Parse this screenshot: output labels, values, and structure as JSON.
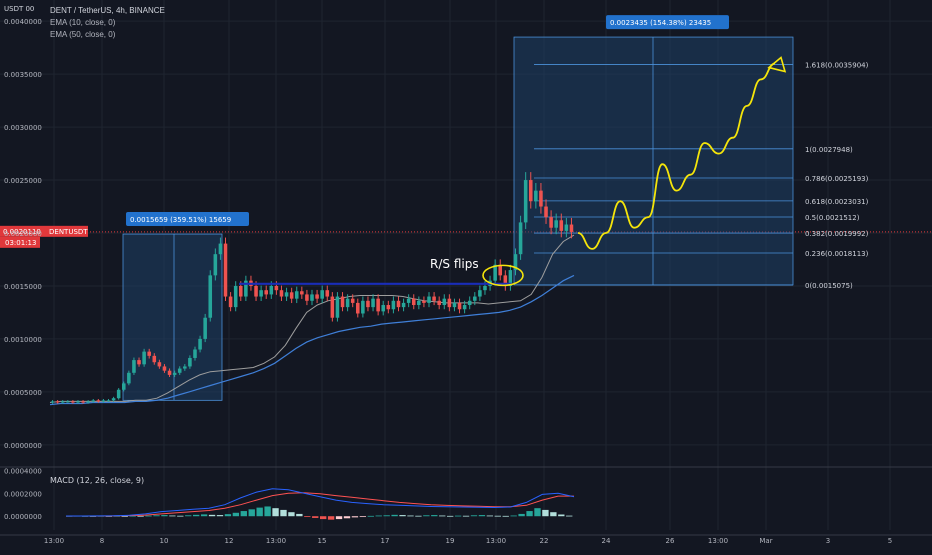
{
  "header": {
    "symbol": "DENT / TetherUS, 4h, BINANCE",
    "ema10": "EMA (10, close, 0)",
    "ema50": "EMA (50, close, 0)",
    "currency_tag": "USDT 00"
  },
  "price_tag": {
    "price": "0.0020110",
    "symbol": "DENTUSDT",
    "countdown": "03:01:13"
  },
  "colors": {
    "background": "#131722",
    "grid": "#1f2430",
    "up": "#26a69a",
    "down": "#ef5350",
    "box": "#1e3f66",
    "box_line": "#4a90d9",
    "fib_line": "#4a90d9",
    "resistance": "#1a2db8",
    "annotation": "#f5e50a",
    "ema10": "#9e9e9e",
    "ema50": "#3f7fd8",
    "macd": "#2962ff",
    "signal": "#ff5252",
    "price_tag": "#e0383b",
    "label_bg": "#2272cd"
  },
  "chart_data": [
    {
      "type": "candlestick",
      "title": "DENT / TetherUS, 4h, BINANCE",
      "x_ticks": [
        "13:00",
        "8",
        "10",
        "12",
        "13:00",
        "15",
        "17",
        "19",
        "13:00",
        "22",
        "24",
        "26",
        "13:00",
        "Mar",
        "3",
        "5"
      ],
      "y_ticks": [
        "0.0040000",
        "0.0035000",
        "0.0030000",
        "0.0025000",
        "0.0020000",
        "0.0015000",
        "0.0010000",
        "0.0005000",
        "0.0000000"
      ],
      "ylim": [
        -0.0002,
        0.0042
      ],
      "grid": true,
      "current_price": 0.002011,
      "candles": [
        {
          "o": 0.0004,
          "c": 0.00041
        },
        {
          "o": 0.00041,
          "c": 0.0004
        },
        {
          "o": 0.0004,
          "c": 0.00041
        },
        {
          "o": 0.00041,
          "c": 0.00041
        },
        {
          "o": 0.00041,
          "c": 0.0004
        },
        {
          "o": 0.0004,
          "c": 0.00041
        },
        {
          "o": 0.00041,
          "c": 0.0004
        },
        {
          "o": 0.0004,
          "c": 0.00041
        },
        {
          "o": 0.00041,
          "c": 0.00042
        },
        {
          "o": 0.00042,
          "c": 0.00041
        },
        {
          "o": 0.00041,
          "c": 0.00042
        },
        {
          "o": 0.00042,
          "c": 0.00042
        },
        {
          "o": 0.00042,
          "c": 0.00044
        },
        {
          "o": 0.00044,
          "c": 0.00052
        },
        {
          "o": 0.00052,
          "c": 0.00058
        },
        {
          "o": 0.00058,
          "c": 0.00068
        },
        {
          "o": 0.00068,
          "c": 0.0008
        },
        {
          "o": 0.0008,
          "c": 0.00076
        },
        {
          "o": 0.00076,
          "c": 0.00088
        },
        {
          "o": 0.00088,
          "c": 0.00084
        },
        {
          "o": 0.00084,
          "c": 0.00078
        },
        {
          "o": 0.00078,
          "c": 0.00074
        },
        {
          "o": 0.00074,
          "c": 0.0007
        },
        {
          "o": 0.0007,
          "c": 0.00066
        },
        {
          "o": 0.00066,
          "c": 0.00068
        },
        {
          "o": 0.00068,
          "c": 0.00072
        },
        {
          "o": 0.00072,
          "c": 0.00074
        },
        {
          "o": 0.00074,
          "c": 0.00082
        },
        {
          "o": 0.00082,
          "c": 0.0009
        },
        {
          "o": 0.0009,
          "c": 0.001
        },
        {
          "o": 0.001,
          "c": 0.0012
        },
        {
          "o": 0.0012,
          "c": 0.0016
        },
        {
          "o": 0.0016,
          "c": 0.0018
        },
        {
          "o": 0.0018,
          "c": 0.0019
        },
        {
          "o": 0.0019,
          "c": 0.0014
        },
        {
          "o": 0.0014,
          "c": 0.0013
        },
        {
          "o": 0.0013,
          "c": 0.0015
        },
        {
          "o": 0.0015,
          "c": 0.0014
        },
        {
          "o": 0.0014,
          "c": 0.00155
        },
        {
          "o": 0.00155,
          "c": 0.0015
        },
        {
          "o": 0.0015,
          "c": 0.0014
        },
        {
          "o": 0.0014,
          "c": 0.00146
        },
        {
          "o": 0.00146,
          "c": 0.00142
        },
        {
          "o": 0.00142,
          "c": 0.0015
        },
        {
          "o": 0.0015,
          "c": 0.00146
        },
        {
          "o": 0.00146,
          "c": 0.0014
        },
        {
          "o": 0.0014,
          "c": 0.00144
        },
        {
          "o": 0.00144,
          "c": 0.00138
        },
        {
          "o": 0.00138,
          "c": 0.00145
        },
        {
          "o": 0.00145,
          "c": 0.00142
        },
        {
          "o": 0.00142,
          "c": 0.00136
        },
        {
          "o": 0.00136,
          "c": 0.00142
        },
        {
          "o": 0.00142,
          "c": 0.00138
        },
        {
          "o": 0.00138,
          "c": 0.00146
        },
        {
          "o": 0.00146,
          "c": 0.0014
        },
        {
          "o": 0.0014,
          "c": 0.0012
        },
        {
          "o": 0.0012,
          "c": 0.0014
        },
        {
          "o": 0.0014,
          "c": 0.0013
        },
        {
          "o": 0.0013,
          "c": 0.00138
        },
        {
          "o": 0.00138,
          "c": 0.00134
        },
        {
          "o": 0.00134,
          "c": 0.00124
        },
        {
          "o": 0.00124,
          "c": 0.00136
        },
        {
          "o": 0.00136,
          "c": 0.0013
        },
        {
          "o": 0.0013,
          "c": 0.00138
        },
        {
          "o": 0.00138,
          "c": 0.00126
        },
        {
          "o": 0.00126,
          "c": 0.00132
        },
        {
          "o": 0.00132,
          "c": 0.00128
        },
        {
          "o": 0.00128,
          "c": 0.00136
        },
        {
          "o": 0.00136,
          "c": 0.0013
        },
        {
          "o": 0.0013,
          "c": 0.00134
        },
        {
          "o": 0.00134,
          "c": 0.00138
        },
        {
          "o": 0.00138,
          "c": 0.00132
        },
        {
          "o": 0.00132,
          "c": 0.00136
        },
        {
          "o": 0.00136,
          "c": 0.00134
        },
        {
          "o": 0.00134,
          "c": 0.0014
        },
        {
          "o": 0.0014,
          "c": 0.00136
        },
        {
          "o": 0.00136,
          "c": 0.00132
        },
        {
          "o": 0.00132,
          "c": 0.00138
        },
        {
          "o": 0.00138,
          "c": 0.0013
        },
        {
          "o": 0.0013,
          "c": 0.00134
        },
        {
          "o": 0.00134,
          "c": 0.00128
        },
        {
          "o": 0.00128,
          "c": 0.00132
        },
        {
          "o": 0.00132,
          "c": 0.00136
        },
        {
          "o": 0.00136,
          "c": 0.0014
        },
        {
          "o": 0.0014,
          "c": 0.00146
        },
        {
          "o": 0.00146,
          "c": 0.0015
        },
        {
          "o": 0.0015,
          "c": 0.00155
        },
        {
          "o": 0.00155,
          "c": 0.0017
        },
        {
          "o": 0.0017,
          "c": 0.0016
        },
        {
          "o": 0.0016,
          "c": 0.0015
        },
        {
          "o": 0.0015,
          "c": 0.00165
        },
        {
          "o": 0.00165,
          "c": 0.0018
        },
        {
          "o": 0.0018,
          "c": 0.0021
        },
        {
          "o": 0.0021,
          "c": 0.0025
        },
        {
          "o": 0.0025,
          "c": 0.0023
        },
        {
          "o": 0.0023,
          "c": 0.0024
        },
        {
          "o": 0.0024,
          "c": 0.00225
        },
        {
          "o": 0.00225,
          "c": 0.00215
        },
        {
          "o": 0.00215,
          "c": 0.00205
        },
        {
          "o": 0.00205,
          "c": 0.00212
        },
        {
          "o": 0.00212,
          "c": 0.00202
        },
        {
          "o": 0.00202,
          "c": 0.00208
        },
        {
          "o": 0.00208,
          "c": 0.00201
        }
      ],
      "ema10": [
        0.0004,
        0.00041,
        0.00041,
        0.00041,
        0.00041,
        0.00041,
        0.00041,
        0.00041,
        0.00042,
        0.00042,
        0.00044,
        0.00049,
        0.00055,
        0.00061,
        0.00066,
        0.00069,
        0.0007,
        0.00071,
        0.00072,
        0.00073,
        0.00077,
        0.00083,
        0.00094,
        0.0011,
        0.00125,
        0.00132,
        0.00136,
        0.00138,
        0.0014,
        0.00141,
        0.00141,
        0.00141,
        0.00141,
        0.0014,
        0.00138,
        0.00136,
        0.00135,
        0.00134,
        0.00134,
        0.00134,
        0.00134,
        0.00133,
        0.00134,
        0.00135,
        0.00136,
        0.00142,
        0.00158,
        0.0018,
        0.00192,
        0.00198
      ],
      "ema50": [
        0.00038,
        0.00039,
        0.00039,
        0.00039,
        0.0004,
        0.0004,
        0.0004,
        0.0004,
        0.00041,
        0.00041,
        0.00042,
        0.00044,
        0.00047,
        0.0005,
        0.00053,
        0.00056,
        0.00059,
        0.00062,
        0.00065,
        0.00068,
        0.00072,
        0.00077,
        0.00084,
        0.00091,
        0.00097,
        0.00101,
        0.00104,
        0.00107,
        0.00109,
        0.00111,
        0.00112,
        0.00114,
        0.00115,
        0.00116,
        0.00117,
        0.00118,
        0.00119,
        0.0012,
        0.00121,
        0.00122,
        0.00123,
        0.00124,
        0.00125,
        0.00127,
        0.0013,
        0.00135,
        0.00141,
        0.00148,
        0.00155,
        0.0016
      ],
      "resistance_level": 0.00152,
      "annotation_text": "R/S flips",
      "range_boxes": [
        {
          "low": 0.00042,
          "high": 0.00199,
          "label": "0.0015659 (359.51%) 15659"
        },
        {
          "low": 0.00151,
          "high": 0.00385,
          "label": "0.0023435 (154.38%) 23435"
        }
      ],
      "fib_levels": [
        {
          "value": 0.0035904,
          "label": "1.618(0.0035904)"
        },
        {
          "value": 0.0027948,
          "label": "1(0.0027948)"
        },
        {
          "value": 0.0025193,
          "label": "0.786(0.0025193)"
        },
        {
          "value": 0.0023031,
          "label": "0.618(0.0023031)"
        },
        {
          "value": 0.0021512,
          "label": "0.5(0.0021512)"
        },
        {
          "value": 0.0019992,
          "label": "0.382(0.0019992)"
        },
        {
          "value": 0.0018113,
          "label": "0.236(0.0018113)"
        },
        {
          "value": 0.0015075,
          "label": "0(0.0015075)"
        }
      ],
      "projection_path": [
        0.002,
        0.00185,
        0.002,
        0.0023,
        0.00205,
        0.00215,
        0.00265,
        0.0024,
        0.00255,
        0.00285,
        0.00275,
        0.0029,
        0.0032,
        0.00345,
        0.0036
      ]
    },
    {
      "type": "bar",
      "title": "MACD (12, 26, close, 9)",
      "y_ticks": [
        "0.0004000",
        "0.0002000",
        "0.0000000"
      ],
      "ylim": [
        -0.00012,
        0.00042
      ],
      "histogram": [
        3e-06,
        4e-06,
        3e-06,
        2e-06,
        3e-06,
        2e-06,
        3e-06,
        2e-06,
        4e-06,
        3e-06,
        5e-06,
        8e-06,
        1e-05,
        6e-06,
        4e-06,
        8e-06,
        1.2e-05,
        1.6e-05,
        1.2e-05,
        1e-05,
        1.8e-05,
        3e-05,
        4.5e-05,
        6e-05,
        7.5e-05,
        8.5e-05,
        7e-05,
        5.5e-05,
        3.5e-05,
        2e-05,
        -5e-06,
        -1.5e-05,
        -2.5e-05,
        -3e-05,
        -2.5e-05,
        -1.8e-05,
        -1e-05,
        -4e-06,
        3e-06,
        6e-06,
        8e-06,
        1.2e-05,
        1e-05,
        6e-06,
        4e-06,
        8e-06,
        1e-05,
        6e-06,
        3e-06,
        5e-06,
        4e-06,
        8e-06,
        1e-05,
        6e-06,
        4e-06,
        3e-06,
        6e-06,
        2e-05,
        4.5e-05,
        7e-05,
        5.5e-05,
        3.5e-05,
        1.5e-05,
        5e-06
      ],
      "macd_line": [
        2e-06,
        2e-06,
        3e-06,
        4e-06,
        8e-06,
        2e-05,
        4e-05,
        5e-05,
        6e-05,
        7e-05,
        0.0001,
        0.00016,
        0.00021,
        0.00024,
        0.00023,
        0.0002,
        0.00017,
        0.00014,
        0.00012,
        0.00011,
        0.0001,
        9.5e-05,
        9e-05,
        8.5e-05,
        8.2e-05,
        8e-05,
        7.8e-05,
        7.6e-05,
        8e-05,
        0.00012,
        0.00019,
        0.0002,
        0.00017
      ],
      "signal_line": [
        1e-06,
        2e-06,
        2e-06,
        3e-06,
        5e-06,
        1e-05,
        2e-05,
        3e-05,
        4e-05,
        5e-05,
        7e-05,
        0.0001,
        0.00014,
        0.00018,
        0.0002,
        0.000205,
        0.000195,
        0.00018,
        0.000165,
        0.00015,
        0.000135,
        0.00012,
        0.00011,
        0.0001,
        9.4e-05,
        9e-05,
        8.6e-05,
        8.2e-05,
        8.2e-05,
        9.5e-05,
        0.00014,
        0.000175,
        0.000175
      ]
    }
  ]
}
